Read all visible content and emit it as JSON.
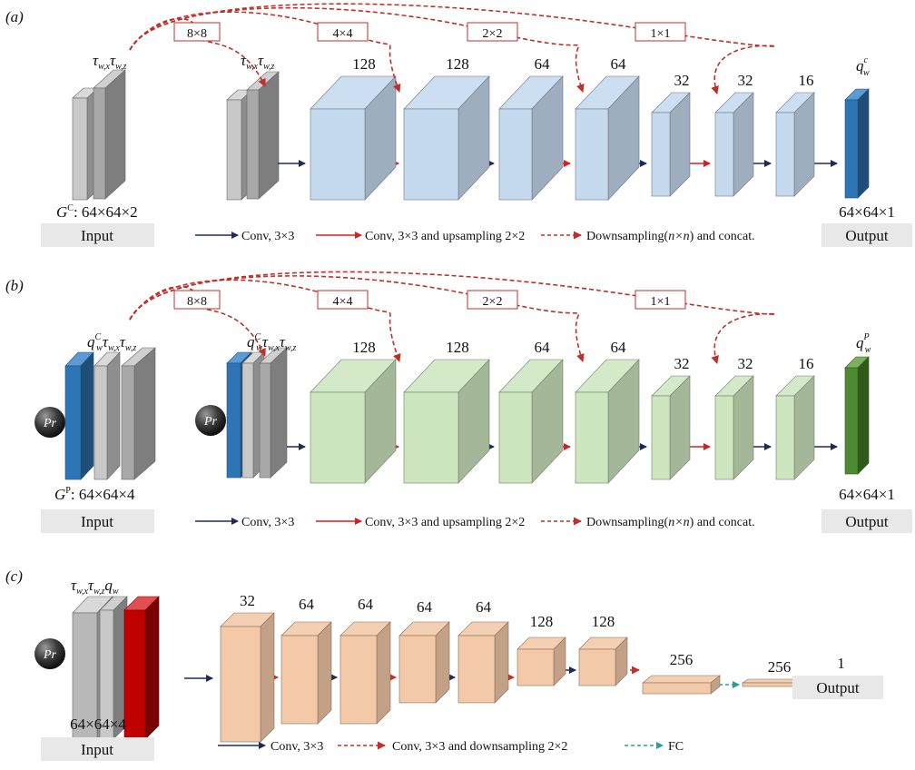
{
  "colors": {
    "gray": "#b4b4b4",
    "blue_block": "#c5d9ef",
    "green_block": "#cde6bf",
    "peach_block": "#f4c9a8",
    "q_blue": "#2e75b6",
    "q_green": "#4e8a33",
    "q_red": "#c00000",
    "conv_arrow": "#1f2a5c",
    "up_arrow": "#d42020",
    "skip_arrow": "#c0302a",
    "fc_arrow": "#2a9d9d",
    "io_box": "#e8e8e8"
  },
  "panel_a": {
    "tag": "(a)",
    "input_channel_labels": [
      "τ",
      "w,x",
      "τ",
      "w,z"
    ],
    "input_size": ": 64×64×2",
    "input_size_prefix": "G",
    "input_size_sup": "C",
    "input_box": "Input",
    "output_box": "Output",
    "output_size": "64×64×1",
    "output_label": "q",
    "output_label_sub": "w",
    "output_label_sup": "c",
    "skip_labels": [
      "8×8",
      "4×4",
      "2×2",
      "1×1"
    ],
    "block_channels": [
      "128",
      "128",
      "64",
      "64",
      "32",
      "32",
      "16"
    ],
    "legend": [
      "Conv, 3×3",
      "Conv, 3×3 and upsampling 2×2",
      "Downsampling(",
      "n×n",
      ") and concat."
    ]
  },
  "panel_b": {
    "tag": "(b)",
    "input_size": ": 64×64×4",
    "input_size_prefix": "G",
    "input_size_sup": "P",
    "input_box": "Input",
    "output_box": "Output",
    "output_size": "64×64×1",
    "output_label": "q",
    "output_label_sub": "w",
    "output_label_sup": "P",
    "input_q_label": "q",
    "input_q_sup": "C",
    "input_q_sub": "w",
    "pr_label": "Pr",
    "skip_labels": [
      "8×8",
      "4×4",
      "2×2",
      "1×1"
    ],
    "block_channels": [
      "128",
      "128",
      "64",
      "64",
      "32",
      "32",
      "16"
    ],
    "legend": [
      "Conv, 3×3",
      "Conv, 3×3 and upsampling 2×2",
      "Downsampling(",
      "n×n",
      ") and concat."
    ]
  },
  "panel_c": {
    "tag": "(c)",
    "input_size": "64×64×4",
    "input_box": "Input",
    "output_box": "Output",
    "pr_label": "Pr",
    "block_channels": [
      "32",
      "64",
      "64",
      "64",
      "64",
      "128",
      "128",
      "256",
      "256",
      "1"
    ],
    "legend": [
      "Conv, 3×3",
      "Conv, 3×3 and downsampling 2×2",
      "FC"
    ]
  }
}
